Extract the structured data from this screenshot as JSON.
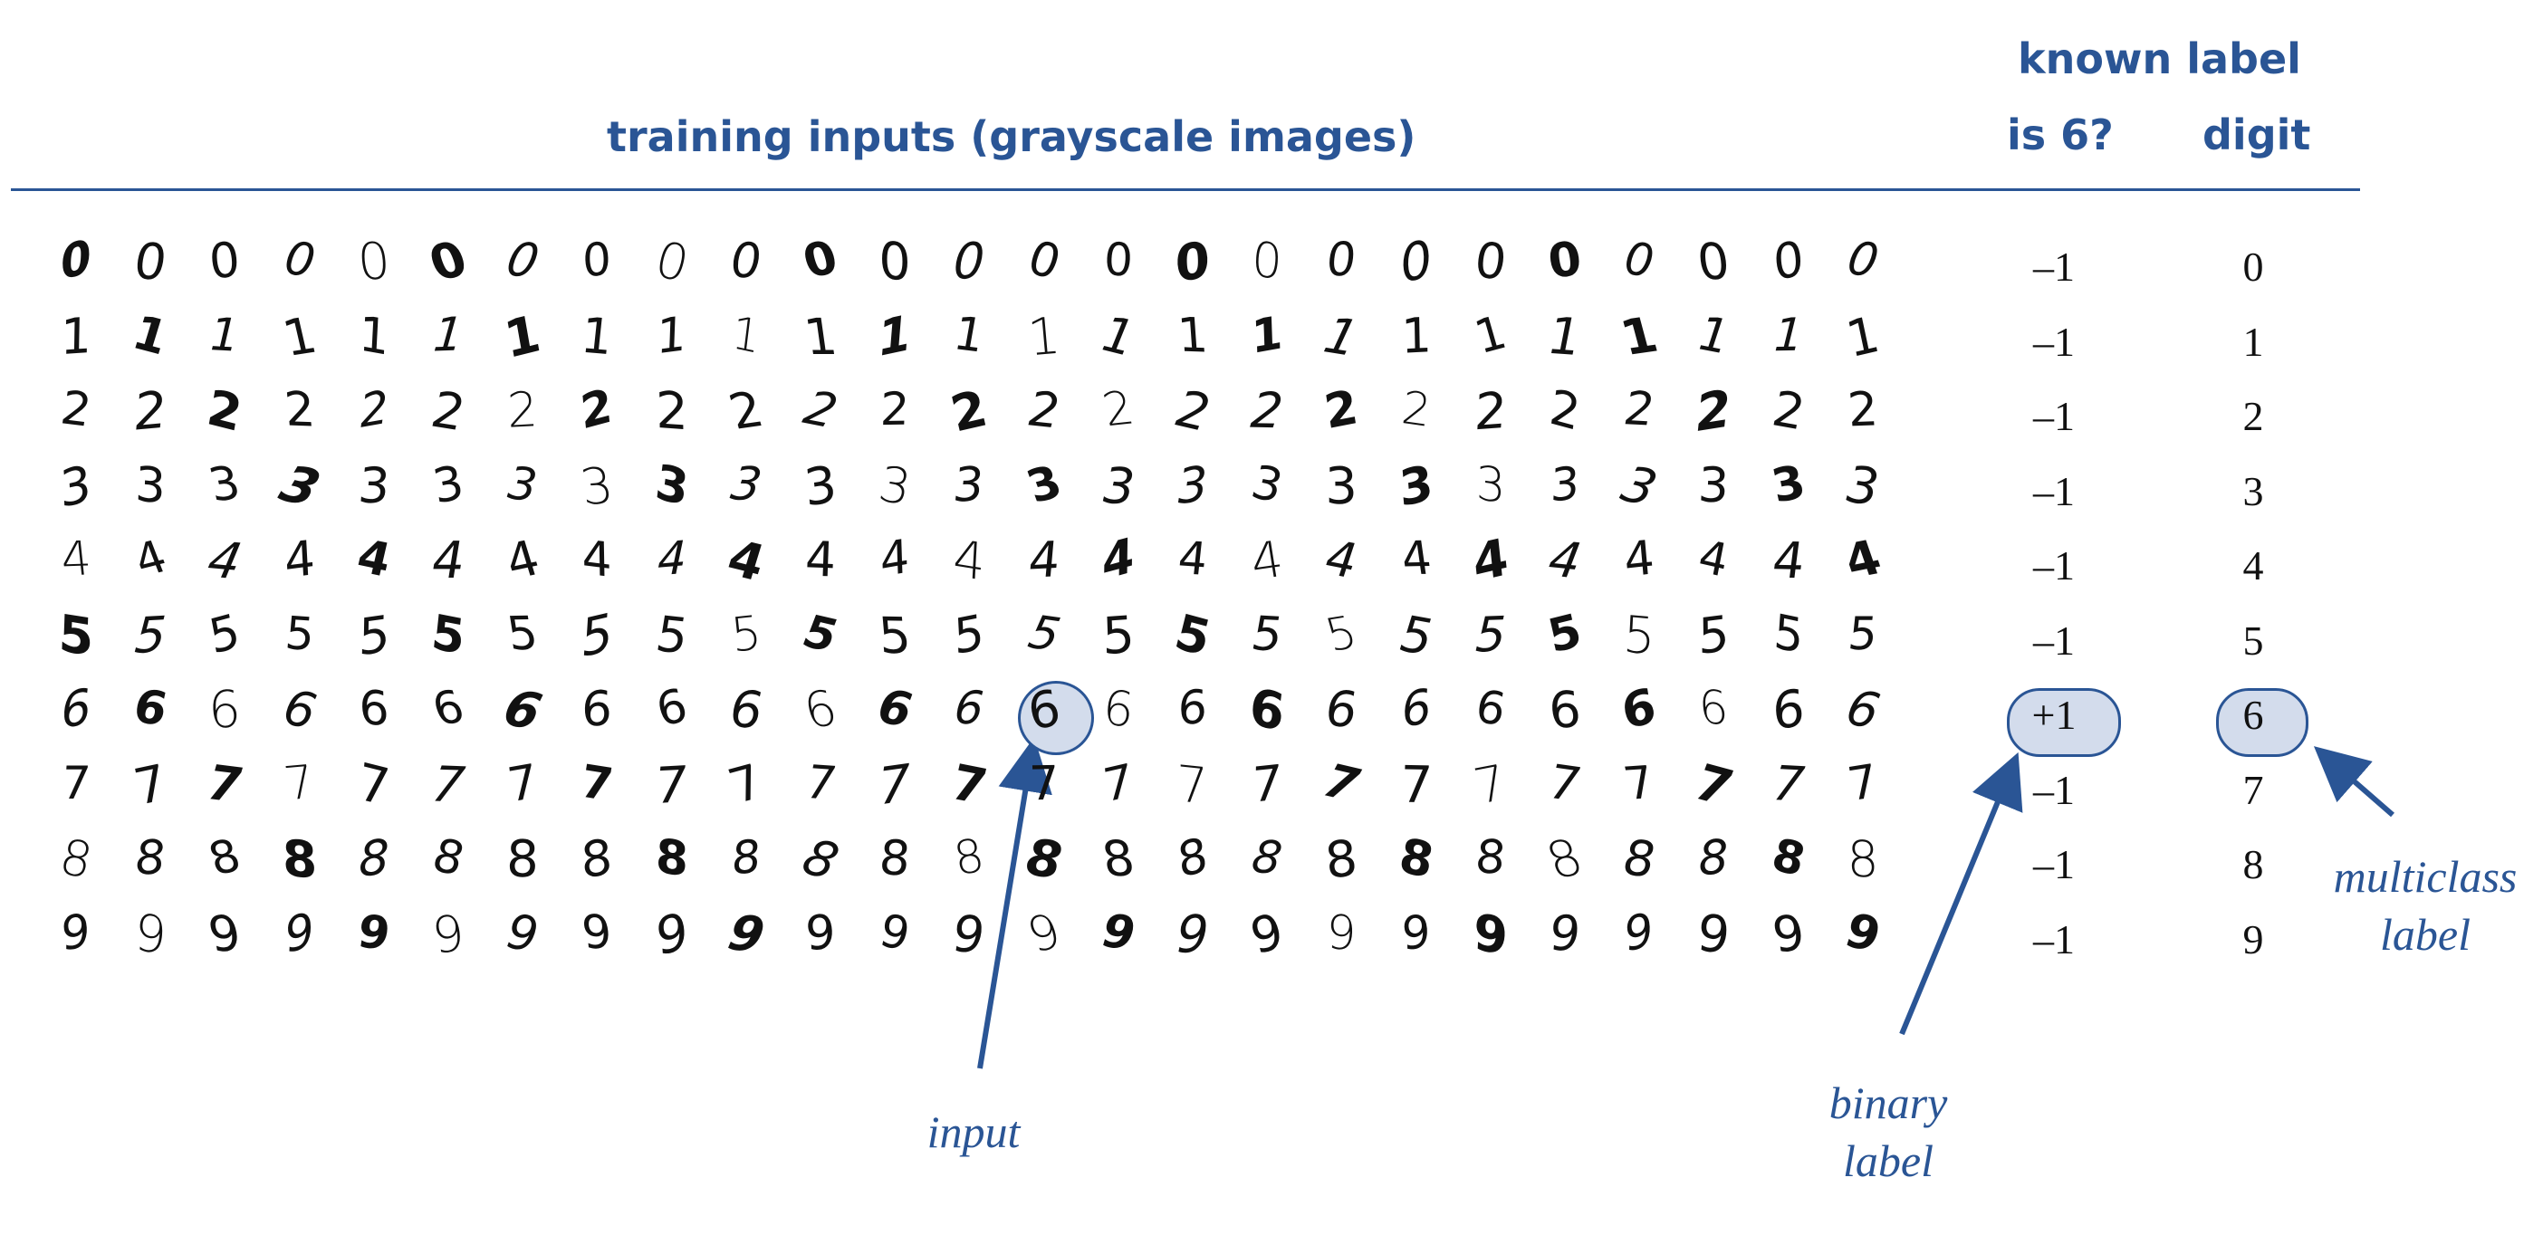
{
  "header": {
    "title": "training inputs (grayscale images)",
    "known_label": "known label",
    "binary_col": "is 6?",
    "multiclass_col": "digit"
  },
  "digits": [
    "0",
    "1",
    "2",
    "3",
    "4",
    "5",
    "6",
    "7",
    "8",
    "9"
  ],
  "columns_per_row": 25,
  "binary_labels": [
    "–1",
    "–1",
    "–1",
    "–1",
    "–1",
    "–1",
    "+1",
    "–1",
    "–1",
    "–1"
  ],
  "multiclass_labels": [
    "0",
    "1",
    "2",
    "3",
    "4",
    "5",
    "6",
    "7",
    "8",
    "9"
  ],
  "highlight": {
    "row": 6,
    "column": 13
  },
  "annotations": {
    "input": "input",
    "binary_line1": "binary",
    "binary_line2": "label",
    "multiclass_line1": "multiclass",
    "multiclass_line2": "label"
  },
  "colors": {
    "accent": "#2a5595",
    "highlight_fill": "#d3dcec",
    "ink": "#111111"
  }
}
